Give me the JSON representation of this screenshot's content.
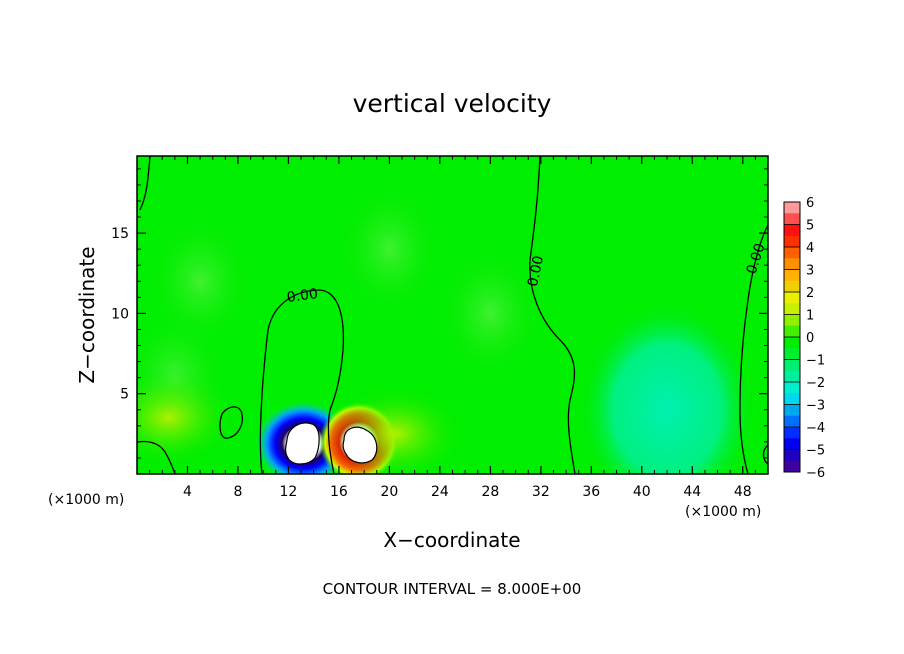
{
  "chart_data": {
    "type": "heatmap",
    "title": "vertical velocity",
    "xlabel": "X−coordinate",
    "ylabel": "Z−coordinate",
    "x_unit_left": "(×1000 m)",
    "x_unit_right": "(×1000 m)",
    "xlim": [
      0,
      50
    ],
    "ylim": [
      0,
      19.8
    ],
    "x_ticks": [
      4,
      8,
      12,
      16,
      20,
      24,
      28,
      32,
      36,
      40,
      44,
      48
    ],
    "y_ticks": [
      5,
      10,
      15
    ],
    "colorbar_ticks": [
      "6",
      "5",
      "4",
      "3",
      "2",
      "1",
      "0",
      "−1",
      "−2",
      "−3",
      "−4",
      "−5",
      "−6"
    ],
    "colorbar_range": [
      -6,
      6
    ],
    "contour_label": "0.00",
    "contour_interval_text": "CONTOUR INTERVAL = 8.000E+00",
    "features": [
      {
        "kind": "downdraft",
        "x": 13.2,
        "z": 1.9,
        "value": -6
      },
      {
        "kind": "updraft",
        "x": 17.6,
        "z": 2.0,
        "value": 6
      },
      {
        "kind": "weak-updraft",
        "x": 2.5,
        "z": 3.5,
        "value": 0.8
      },
      {
        "kind": "weak-updraft",
        "x": 20.5,
        "z": 2.5,
        "value": 0.5
      },
      {
        "kind": "weak-downdraft",
        "x": 42.0,
        "z": 4.0,
        "value": -1.6
      }
    ],
    "grid": false,
    "legend": "colorbar-right"
  },
  "colors": {
    "background": "#00ee00",
    "contour": "#000000",
    "saturated": "#ffffff"
  }
}
